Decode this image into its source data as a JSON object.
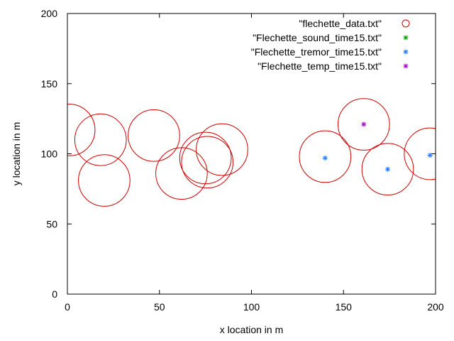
{
  "chart_data": {
    "type": "scatter",
    "title": "",
    "xlabel": "x location in m",
    "ylabel": "y location in m",
    "xlim": [
      0,
      200
    ],
    "ylim": [
      0,
      200
    ],
    "xticks": [
      0,
      50,
      100,
      150,
      200
    ],
    "yticks": [
      0,
      50,
      100,
      150,
      200
    ],
    "grid": false,
    "legend_position": "top-right",
    "series": [
      {
        "name": "\"flechette_data.txt\"",
        "marker": "circle",
        "color": "#cc0000",
        "radius": 14,
        "points": [
          {
            "x": 1,
            "y": 117
          },
          {
            "x": 18,
            "y": 110
          },
          {
            "x": 20,
            "y": 81
          },
          {
            "x": 47,
            "y": 113
          },
          {
            "x": 62,
            "y": 86
          },
          {
            "x": 75,
            "y": 97
          },
          {
            "x": 76,
            "y": 94
          },
          {
            "x": 84,
            "y": 103
          },
          {
            "x": 140,
            "y": 98
          },
          {
            "x": 161,
            "y": 121
          },
          {
            "x": 174,
            "y": 89
          },
          {
            "x": 197,
            "y": 100
          }
        ]
      },
      {
        "name": "\"Flechette_sound_time15.txt\"",
        "marker": "star",
        "color": "#00a000",
        "points": []
      },
      {
        "name": "\"Flechette_tremor_time15.txt\"",
        "marker": "star",
        "color": "#1f77e8",
        "points": [
          {
            "x": 140,
            "y": 97
          },
          {
            "x": 174,
            "y": 89
          },
          {
            "x": 197,
            "y": 99
          }
        ]
      },
      {
        "name": "\"Flechette_temp_time15.txt\"",
        "marker": "star",
        "color": "#a000c8",
        "points": [
          {
            "x": 161,
            "y": 121
          }
        ]
      }
    ]
  }
}
